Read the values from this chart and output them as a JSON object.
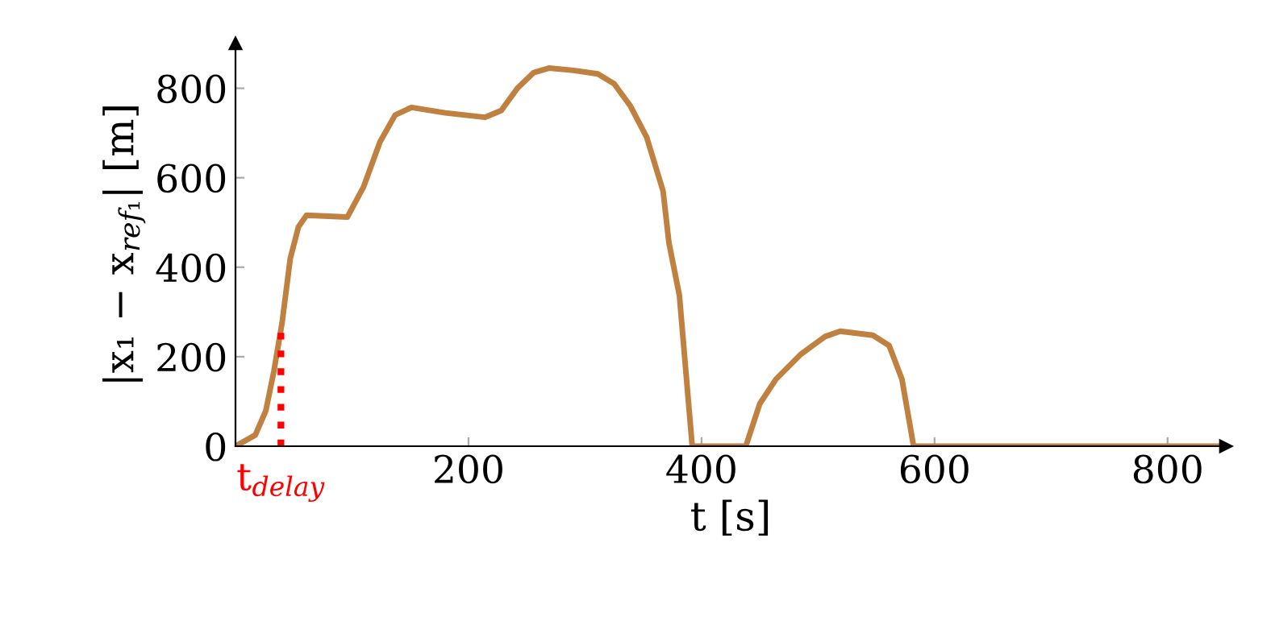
{
  "chart_data": {
    "type": "line",
    "xlabel": "t [s]",
    "ylabel": "|x₁ − x$_{ref₁}$| [m]",
    "xlim": [
      0,
      850
    ],
    "ylim": [
      0,
      900
    ],
    "xticks": [
      200,
      400,
      600,
      800
    ],
    "yticks": [
      0,
      200,
      400,
      600,
      800
    ],
    "grid": false,
    "marker": "none",
    "line_style": "solid",
    "series": [
      {
        "color": "#bf8040",
        "x": [
          0,
          17,
          26,
          33,
          40,
          47,
          54,
          61,
          80,
          96,
          110,
          124,
          137,
          151,
          180,
          214,
          228,
          242,
          256,
          269,
          290,
          311,
          325,
          339,
          353,
          367,
          372,
          381,
          392,
          438,
          450,
          464,
          485,
          506,
          519,
          547,
          561,
          572,
          582,
          850
        ],
        "values": [
          0,
          25,
          79,
          168,
          276,
          419,
          490,
          516,
          514,
          512,
          580,
          680,
          740,
          757,
          745,
          735,
          750,
          800,
          835,
          845,
          840,
          832,
          810,
          760,
          690,
          570,
          455,
          337,
          0,
          0,
          95,
          150,
          205,
          245,
          257,
          248,
          225,
          150,
          0,
          0
        ]
      }
    ],
    "ref_lines": [
      {
        "axis": "x",
        "value": 39,
        "label": "t$_{delay}$",
        "color": "#ff0000",
        "line_style": "dotted"
      }
    ]
  }
}
